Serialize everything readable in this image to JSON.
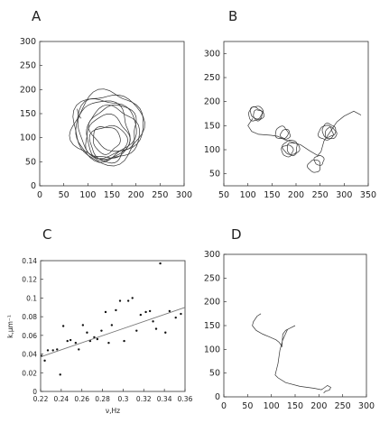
{
  "chart_data": [
    {
      "panel": "A",
      "type": "line",
      "xlim": [
        0,
        300
      ],
      "ylim": [
        0,
        300
      ],
      "xticks": [
        0,
        50,
        100,
        150,
        200,
        250,
        300
      ],
      "yticks": [
        0,
        50,
        100,
        150,
        200,
        250,
        300
      ],
      "grid": false,
      "series": [
        {
          "loops": [
            {
              "cx": 142,
              "cy": 120,
              "r": 72
            },
            {
              "cx": 135,
              "cy": 118,
              "r": 63
            },
            {
              "cx": 150,
              "cy": 108,
              "r": 55
            },
            {
              "cx": 140,
              "cy": 100,
              "r": 45
            },
            {
              "cx": 128,
              "cy": 115,
              "r": 60
            },
            {
              "cx": 155,
              "cy": 120,
              "r": 48
            },
            {
              "cx": 143,
              "cy": 88,
              "r": 38
            },
            {
              "cx": 138,
              "cy": 96,
              "r": 28
            },
            {
              "cx": 145,
              "cy": 128,
              "r": 68
            }
          ],
          "tail": [
            [
              78,
              160
            ],
            [
              80,
              148
            ],
            [
              86,
              140
            ]
          ]
        }
      ]
    },
    {
      "panel": "B",
      "type": "line",
      "xlim": [
        50,
        350
      ],
      "ylim": [
        25,
        325
      ],
      "xticks": [
        50,
        100,
        150,
        200,
        250,
        300,
        350
      ],
      "yticks": [
        50,
        100,
        150,
        200,
        250,
        300
      ],
      "grid": false,
      "series": [
        {
          "loops": [
            {
              "cx": 118,
              "cy": 178,
              "r": 13
            },
            {
              "cx": 122,
              "cy": 172,
              "r": 11
            },
            {
              "cx": 115,
              "cy": 174,
              "r": 14
            },
            {
              "cx": 170,
              "cy": 135,
              "r": 13
            },
            {
              "cx": 178,
              "cy": 132,
              "r": 10
            },
            {
              "cx": 188,
              "cy": 105,
              "r": 15
            },
            {
              "cx": 182,
              "cy": 98,
              "r": 12
            },
            {
              "cx": 194,
              "cy": 102,
              "r": 13
            },
            {
              "cx": 268,
              "cy": 140,
              "r": 14
            },
            {
              "cx": 272,
              "cy": 134,
              "r": 12
            },
            {
              "cx": 262,
              "cy": 135,
              "r": 15
            },
            {
              "cx": 238,
              "cy": 66,
              "r": 13
            },
            {
              "cx": 248,
              "cy": 78,
              "r": 10
            }
          ],
          "tail": [
            [
              110,
              165
            ],
            [
              100,
              150
            ],
            [
              108,
              138
            ],
            [
              122,
              132
            ],
            [
              148,
              130
            ],
            [
              162,
              128
            ],
            [
              178,
              120
            ],
            [
              186,
              118
            ],
            [
              210,
              110
            ],
            [
              228,
              98
            ],
            [
              245,
              88
            ],
            [
              252,
              96
            ],
            [
              258,
              118
            ],
            [
              285,
              158
            ],
            [
              300,
              170
            ],
            [
              320,
              180
            ],
            [
              335,
              172
            ]
          ]
        }
      ]
    },
    {
      "panel": "C",
      "type": "scatter",
      "xlabel": "ν,Hz",
      "ylabel": "k,μm⁻¹",
      "xlim": [
        0.22,
        0.36
      ],
      "ylim": [
        0,
        0.14
      ],
      "xticks": [
        0.22,
        0.24,
        0.26,
        0.28,
        0.3,
        0.32,
        0.34,
        0.36
      ],
      "yticks": [
        0,
        0.02,
        0.04,
        0.06,
        0.08,
        0.1,
        0.12,
        0.14
      ],
      "grid": false,
      "points": [
        [
          0.221,
          0.038
        ],
        [
          0.224,
          0.033
        ],
        [
          0.227,
          0.044
        ],
        [
          0.232,
          0.044
        ],
        [
          0.236,
          0.045
        ],
        [
          0.239,
          0.018
        ],
        [
          0.242,
          0.07
        ],
        [
          0.246,
          0.054
        ],
        [
          0.249,
          0.055
        ],
        [
          0.254,
          0.052
        ],
        [
          0.257,
          0.045
        ],
        [
          0.261,
          0.071
        ],
        [
          0.265,
          0.063
        ],
        [
          0.268,
          0.054
        ],
        [
          0.272,
          0.058
        ],
        [
          0.275,
          0.056
        ],
        [
          0.279,
          0.065
        ],
        [
          0.283,
          0.085
        ],
        [
          0.286,
          0.052
        ],
        [
          0.289,
          0.071
        ],
        [
          0.293,
          0.087
        ],
        [
          0.297,
          0.097
        ],
        [
          0.301,
          0.054
        ],
        [
          0.305,
          0.097
        ],
        [
          0.309,
          0.1
        ],
        [
          0.313,
          0.065
        ],
        [
          0.317,
          0.082
        ],
        [
          0.322,
          0.085
        ],
        [
          0.326,
          0.086
        ],
        [
          0.329,
          0.075
        ],
        [
          0.332,
          0.067
        ],
        [
          0.336,
          0.137
        ],
        [
          0.341,
          0.063
        ],
        [
          0.345,
          0.086
        ],
        [
          0.351,
          0.079
        ],
        [
          0.356,
          0.083
        ]
      ],
      "fit_line": [
        [
          0.22,
          0.037
        ],
        [
          0.36,
          0.09
        ]
      ]
    },
    {
      "panel": "D",
      "type": "line",
      "xlim": [
        0,
        300
      ],
      "ylim": [
        0,
        300
      ],
      "xticks": [
        0,
        50,
        100,
        150,
        200,
        250,
        300
      ],
      "yticks": [
        0,
        50,
        100,
        150,
        200,
        250,
        300
      ],
      "grid": false,
      "series": [
        {
          "path": [
            [
              78,
              175
            ],
            [
              70,
              170
            ],
            [
              62,
              158
            ],
            [
              60,
              150
            ],
            [
              68,
              140
            ],
            [
              82,
              132
            ],
            [
              96,
              126
            ],
            [
              110,
              120
            ],
            [
              116,
              115
            ],
            [
              120,
              110
            ],
            [
              122,
              105
            ],
            [
              124,
              132
            ],
            [
              130,
              140
            ],
            [
              150,
              150
            ],
            [
              134,
              142
            ],
            [
              124,
              120
            ],
            [
              118,
              98
            ],
            [
              114,
              70
            ],
            [
              110,
              54
            ],
            [
              108,
              46
            ],
            [
              114,
              40
            ],
            [
              130,
              30
            ],
            [
              160,
              22
            ],
            [
              190,
              18
            ],
            [
              205,
              15
            ],
            [
              210,
              18
            ],
            [
              218,
              24
            ],
            [
              225,
              20
            ],
            [
              222,
              14
            ],
            [
              214,
              12
            ],
            [
              210,
              8
            ]
          ]
        }
      ]
    }
  ]
}
